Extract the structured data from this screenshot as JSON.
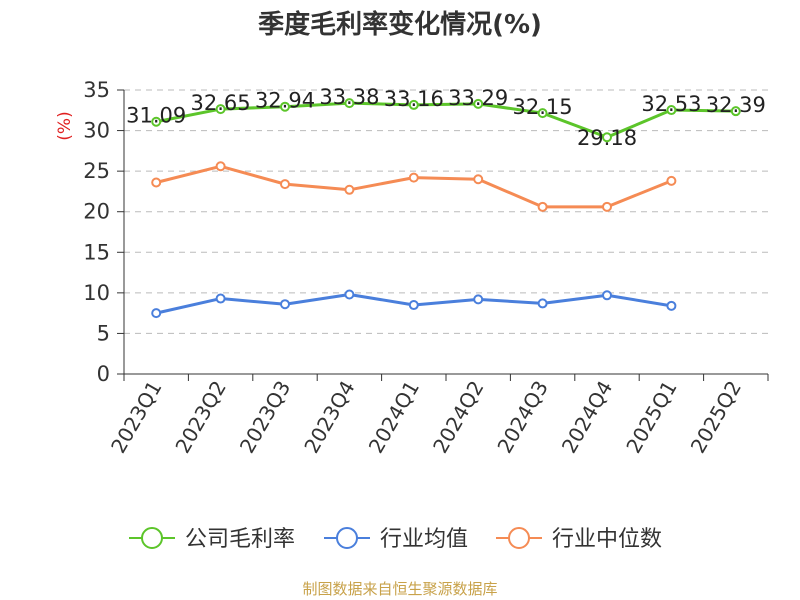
{
  "chart_data": {
    "type": "line",
    "title": "季度毛利率变化情况(%)",
    "ylabel": "(%)",
    "ylim": [
      0,
      35
    ],
    "yticks": [
      0,
      5,
      10,
      15,
      20,
      25,
      30,
      35
    ],
    "grid": true,
    "legend_position": "bottom",
    "categories": [
      "2023Q1",
      "2023Q2",
      "2023Q3",
      "2023Q4",
      "2024Q1",
      "2024Q2",
      "2024Q3",
      "2024Q4",
      "2025Q1",
      "2025Q2"
    ],
    "series": [
      {
        "name": "公司毛利率",
        "color": "#5cc52a",
        "labeled": true,
        "values": [
          31.09,
          32.65,
          32.94,
          33.38,
          33.16,
          33.29,
          32.15,
          29.18,
          32.53,
          32.39
        ]
      },
      {
        "name": "行业均值",
        "color": "#4a7fdc",
        "labeled": false,
        "values": [
          7.5,
          9.3,
          8.6,
          9.8,
          8.5,
          9.2,
          8.7,
          9.7,
          8.4,
          null
        ]
      },
      {
        "name": "行业中位数",
        "color": "#f58b54",
        "labeled": false,
        "values": [
          23.6,
          25.6,
          23.4,
          22.7,
          24.2,
          24.0,
          20.6,
          20.6,
          23.8,
          null
        ]
      }
    ]
  },
  "source": "制图数据来自恒生聚源数据库"
}
